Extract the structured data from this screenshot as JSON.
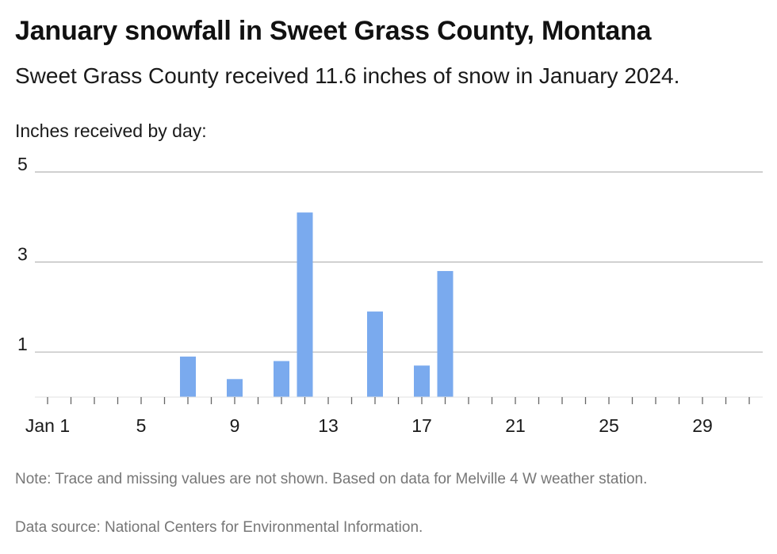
{
  "chart_data": {
    "type": "bar",
    "title": "January snowfall in Sweet Grass County, Montana",
    "subtitle": "Sweet Grass County received 11.6 inches of snow in January 2024.",
    "ylabel": "Inches received by day:",
    "xlabel": "",
    "x_domain": [
      1,
      31
    ],
    "ylim": [
      0,
      5
    ],
    "y_ticks": [
      1,
      3,
      5
    ],
    "x_ticks": [
      {
        "day": 1,
        "label": "Jan 1"
      },
      {
        "day": 5,
        "label": "5"
      },
      {
        "day": 9,
        "label": "9"
      },
      {
        "day": 13,
        "label": "13"
      },
      {
        "day": 17,
        "label": "17"
      },
      {
        "day": 21,
        "label": "21"
      },
      {
        "day": 25,
        "label": "25"
      },
      {
        "day": 29,
        "label": "29"
      }
    ],
    "series": [
      {
        "points": [
          {
            "day": 7,
            "value": 0.9
          },
          {
            "day": 9,
            "value": 0.4
          },
          {
            "day": 11,
            "value": 0.8
          },
          {
            "day": 12,
            "value": 4.1
          },
          {
            "day": 15,
            "value": 1.9
          },
          {
            "day": 17,
            "value": 0.7
          },
          {
            "day": 18,
            "value": 2.8
          }
        ]
      }
    ],
    "bar_color": "#7aaaee",
    "grid": true,
    "note": "Note: Trace and missing values are not shown. Based on data for Melville 4 W weather station.",
    "source": "Data source: National Centers for Environmental Information."
  }
}
